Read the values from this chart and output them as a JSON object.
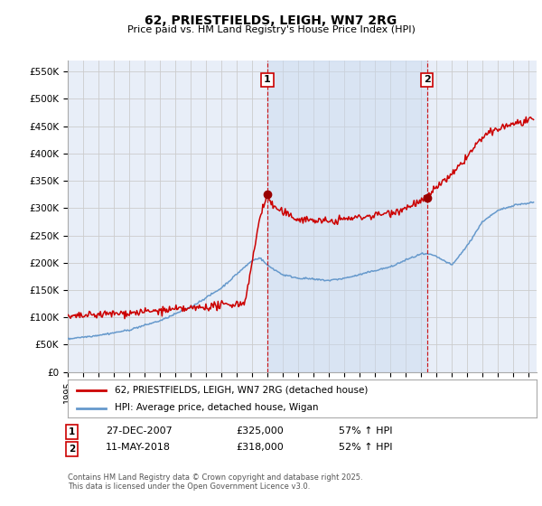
{
  "title": "62, PRIESTFIELDS, LEIGH, WN7 2RG",
  "subtitle": "Price paid vs. HM Land Registry's House Price Index (HPI)",
  "ylabel_ticks": [
    "£0",
    "£50K",
    "£100K",
    "£150K",
    "£200K",
    "£250K",
    "£300K",
    "£350K",
    "£400K",
    "£450K",
    "£500K",
    "£550K"
  ],
  "ytick_values": [
    0,
    50000,
    100000,
    150000,
    200000,
    250000,
    300000,
    350000,
    400000,
    450000,
    500000,
    550000
  ],
  "ylim": [
    0,
    570000
  ],
  "xlim_start": 1995.0,
  "xlim_end": 2025.5,
  "transaction1_x": 2007.98,
  "transaction1_y": 325000,
  "transaction1_label": "1",
  "transaction1_date": "27-DEC-2007",
  "transaction1_price": "£325,000",
  "transaction1_hpi": "57% ↑ HPI",
  "transaction2_x": 2018.36,
  "transaction2_y": 318000,
  "transaction2_label": "2",
  "transaction2_date": "11-MAY-2018",
  "transaction2_price": "£318,000",
  "transaction2_hpi": "52% ↑ HPI",
  "line1_color": "#cc0000",
  "line2_color": "#6699cc",
  "vline_color": "#cc0000",
  "marker_color": "#990000",
  "grid_color": "#cccccc",
  "background_color": "#ffffff",
  "plot_bg_color": "#e8eef8",
  "shade_color": "#dce6f5",
  "legend_line1": "62, PRIESTFIELDS, LEIGH, WN7 2RG (detached house)",
  "legend_line2": "HPI: Average price, detached house, Wigan",
  "footer": "Contains HM Land Registry data © Crown copyright and database right 2025.\nThis data is licensed under the Open Government Licence v3.0.",
  "xtick_years": [
    1995,
    1996,
    1997,
    1998,
    1999,
    2000,
    2001,
    2002,
    2003,
    2004,
    2005,
    2006,
    2007,
    2008,
    2009,
    2010,
    2011,
    2012,
    2013,
    2014,
    2015,
    2016,
    2017,
    2018,
    2019,
    2020,
    2021,
    2022,
    2023,
    2024,
    2025
  ]
}
